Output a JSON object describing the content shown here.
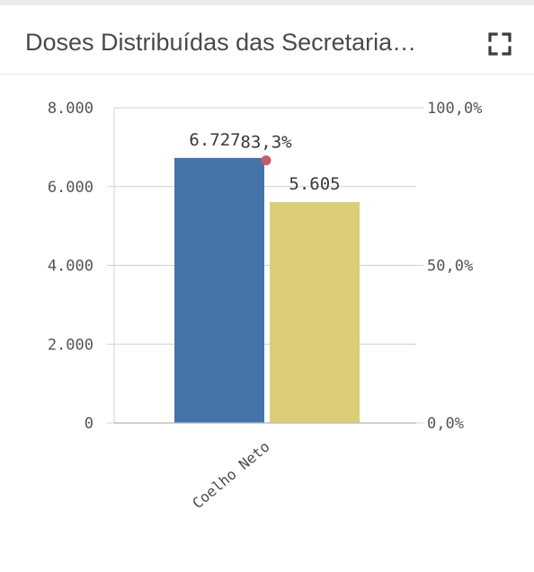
{
  "header": {
    "title": "Doses Distribuídas das Secretaria…",
    "expand_icon": "fullscreen-icon"
  },
  "colors": {
    "bar_primary": "#4575a8",
    "bar_secondary": "#dccd78",
    "line_point": "#c65a6c",
    "gridline": "#d0d0d0",
    "axis_text": "#555555"
  },
  "chart_data": {
    "type": "bar",
    "categories": [
      "Coelho Neto"
    ],
    "series": [
      {
        "values": [
          6727
        ],
        "label": "6.727",
        "color": "#4575a8",
        "axis": "left"
      },
      {
        "values": [
          5605
        ],
        "label": "5.605",
        "color": "#dccd78",
        "axis": "left"
      },
      {
        "values": [
          83.3
        ],
        "label": "83,3%",
        "color": "#c65a6c",
        "axis": "right",
        "kind": "point"
      }
    ],
    "ylim": [
      0,
      8000
    ],
    "y_ticks": [
      0,
      2000,
      4000,
      6000,
      8000
    ],
    "y_tick_labels": [
      "0",
      "2.000",
      "4.000",
      "6.000",
      "8.000"
    ],
    "y2lim": [
      0,
      100
    ],
    "y2_ticks": [
      0,
      50,
      100
    ],
    "y2_tick_labels": [
      "0,0%",
      "50,0%",
      "100,0%"
    ],
    "xlabel": "",
    "ylabel": "",
    "grid": true
  }
}
